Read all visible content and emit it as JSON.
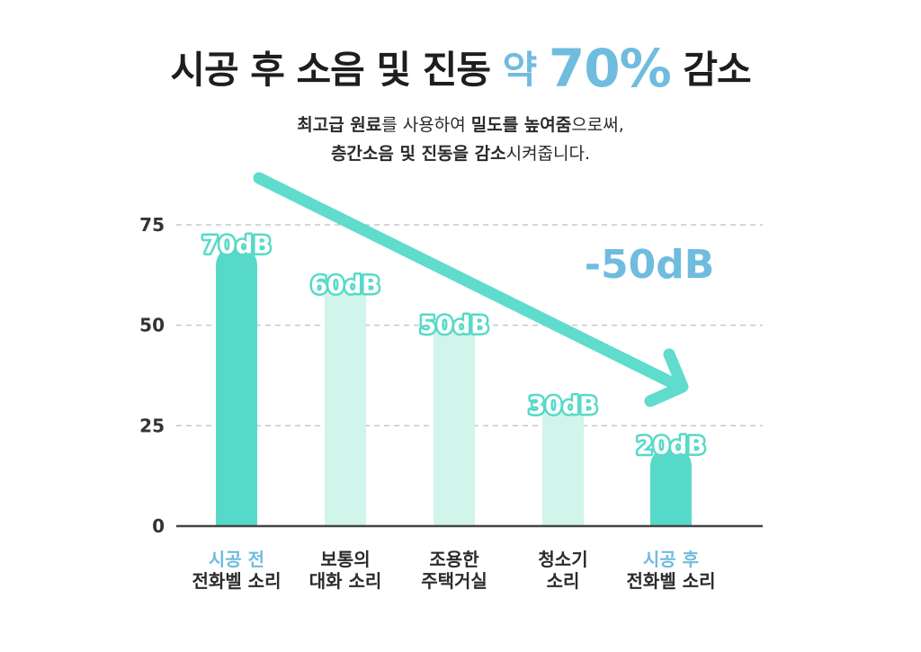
{
  "title": {
    "before": "시공 후 소음 및 진동 ",
    "accent_word": "약 ",
    "accent_big": "70%",
    "after": " 감소"
  },
  "subtitle": {
    "line1": [
      {
        "t": "최고급 원료",
        "b": true
      },
      {
        "t": "를 사용하여 ",
        "b": false
      },
      {
        "t": "밀도를 높여줌",
        "b": true
      },
      {
        "t": "으로써,",
        "b": false
      }
    ],
    "line2": [
      {
        "t": "층간소음 및 진동을 감소",
        "b": true
      },
      {
        "t": "시켜줍니다.",
        "b": false
      }
    ]
  },
  "colors": {
    "accent_blue": "#6fbcdf",
    "bar_strong": "#57d9c9",
    "bar_light": "#d1f5ea",
    "arrow": "#5fdccb",
    "grid": "#c8c8c8",
    "axis": "#444444"
  },
  "chart_data": {
    "type": "bar",
    "categories": [
      {
        "line1": "시공 전",
        "line2": "전화벨 소리",
        "highlight": true
      },
      {
        "line1": "보통의",
        "line2": "대화 소리",
        "highlight": false
      },
      {
        "line1": "조용한",
        "line2": "주택거실",
        "highlight": false
      },
      {
        "line1": "청소기",
        "line2": "소리",
        "highlight": false
      },
      {
        "line1": "시공 후",
        "line2": "전화벨 소리",
        "highlight": true
      }
    ],
    "values": [
      70,
      60,
      50,
      30,
      20
    ],
    "data_labels": [
      "70dB",
      "60dB",
      "50dB",
      "30dB",
      "20dB"
    ],
    "emphasized": [
      true,
      false,
      false,
      false,
      true
    ],
    "yticks": [
      0,
      25,
      50,
      75
    ],
    "ylim": [
      0,
      75
    ],
    "grid": true,
    "annotation": "-50dB"
  }
}
